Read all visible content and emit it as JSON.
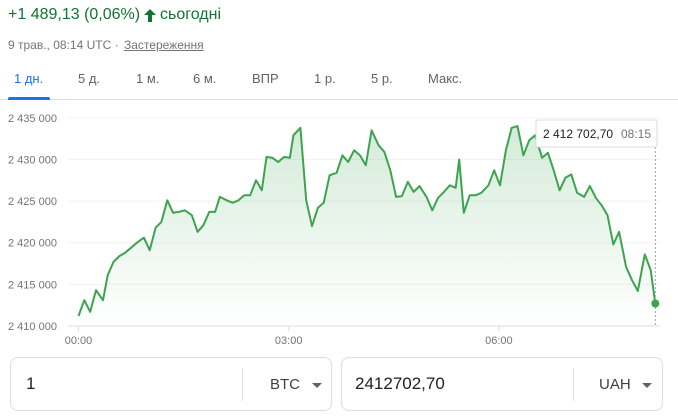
{
  "header": {
    "change": "+1 489,13 (0,06%)",
    "period": "сьогодні",
    "date": "9 трав., 08:14 UTC",
    "separator": "·",
    "disclaimer": "Застереження"
  },
  "tabs": [
    "1 дн.",
    "5 д.",
    "1 м.",
    "6 м.",
    "ВПР",
    "1 р.",
    "5 р.",
    "Макс."
  ],
  "chart_data": {
    "type": "line",
    "color": "#3ca450",
    "grid": true,
    "x": [
      0,
      5,
      10,
      15,
      21,
      25,
      30,
      35,
      40,
      45,
      50,
      56,
      61,
      66,
      71,
      76,
      81,
      86,
      91,
      97,
      102,
      107,
      112,
      117,
      121,
      127,
      132,
      137,
      142,
      147,
      152,
      157,
      161,
      166,
      171,
      176,
      181,
      184,
      190,
      195,
      200,
      205,
      210,
      215,
      221,
      226,
      231,
      236,
      241,
      246,
      251,
      257,
      262,
      267,
      272,
      277,
      282,
      287,
      292,
      298,
      303,
      308,
      313,
      318,
      323,
      326,
      330,
      335,
      340,
      345,
      351,
      356,
      361,
      366,
      371,
      376,
      381,
      386,
      391,
      397,
      402,
      407,
      412,
      417,
      422,
      427,
      433,
      438,
      443,
      448,
      453,
      458,
      463,
      469,
      474,
      479,
      485,
      490,
      494
    ],
    "values": [
      2411200,
      2413100,
      2411700,
      2414300,
      2413100,
      2416100,
      2417700,
      2418400,
      2418800,
      2419400,
      2420000,
      2420600,
      2419100,
      2421800,
      2422500,
      2425100,
      2423600,
      2423700,
      2423900,
      2423300,
      2421300,
      2422100,
      2423700,
      2423700,
      2425500,
      2425100,
      2424800,
      2425100,
      2425700,
      2425700,
      2427500,
      2426300,
      2430300,
      2430200,
      2429700,
      2430300,
      2430200,
      2432900,
      2433800,
      2425100,
      2422000,
      2424200,
      2424800,
      2428100,
      2428400,
      2430500,
      2429700,
      2431100,
      2430500,
      2429300,
      2433500,
      2431700,
      2430900,
      2428700,
      2425500,
      2425600,
      2427300,
      2426100,
      2426800,
      2425500,
      2423900,
      2425400,
      2426100,
      2426900,
      2426600,
      2430000,
      2423600,
      2425700,
      2425700,
      2426000,
      2426900,
      2428700,
      2426900,
      2431100,
      2433800,
      2434000,
      2430500,
      2432300,
      2432900,
      2430200,
      2430800,
      2428700,
      2426300,
      2427800,
      2428200,
      2426000,
      2425500,
      2426800,
      2425400,
      2424500,
      2423300,
      2419800,
      2421300,
      2417100,
      2415500,
      2414200,
      2418600,
      2416700,
      2412702.7
    ],
    "xlim": [
      -9,
      498
    ],
    "xticks": [
      {
        "value": 0,
        "label": "00:00"
      },
      {
        "value": 180,
        "label": "03:00"
      },
      {
        "value": 360,
        "label": "06:00"
      }
    ],
    "ylim": [
      2410000,
      2436900
    ],
    "yticks": [
      {
        "value": 2410000,
        "label": "2 410 000"
      },
      {
        "value": 2415000,
        "label": "2 415 000"
      },
      {
        "value": 2420000,
        "label": "2 420 000"
      },
      {
        "value": 2425000,
        "label": "2 425 000"
      },
      {
        "value": 2430000,
        "label": "2 430 000"
      },
      {
        "value": 2435000,
        "label": "2 435 000"
      }
    ],
    "tooltip": {
      "value_label": "2 412 702,70",
      "time": "08:15"
    }
  },
  "converter": {
    "from_amount": "1",
    "from_currency": "BTC",
    "to_amount": "2412702,70",
    "to_currency": "UAH"
  }
}
